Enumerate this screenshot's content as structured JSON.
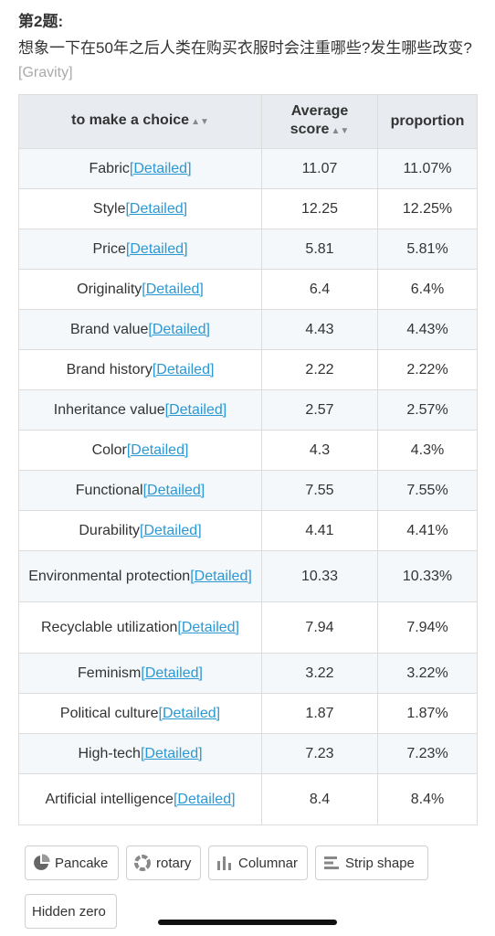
{
  "question": {
    "number": "第2题:",
    "text": "想象一下在50年之后人类在购买衣服时会注重哪些?发生哪些改变?",
    "tag": "[Gravity]"
  },
  "table": {
    "headers": {
      "choice": "to make a choice",
      "score": "Average score",
      "proportion": "proportion"
    },
    "detail_label": "[Detailed]",
    "rows": [
      {
        "choice": "Fabric",
        "score": "11.07",
        "proportion": "11.07%"
      },
      {
        "choice": "Style",
        "score": "12.25",
        "proportion": "12.25%"
      },
      {
        "choice": "Price",
        "score": "5.81",
        "proportion": "5.81%"
      },
      {
        "choice": "Originality",
        "score": "6.4",
        "proportion": "6.4%"
      },
      {
        "choice": "Brand value",
        "score": "4.43",
        "proportion": "4.43%"
      },
      {
        "choice": "Brand history",
        "score": "2.22",
        "proportion": "2.22%"
      },
      {
        "choice": "Inheritance value",
        "score": "2.57",
        "proportion": "2.57%"
      },
      {
        "choice": "Color",
        "score": "4.3",
        "proportion": "4.3%"
      },
      {
        "choice": "Functional",
        "score": "7.55",
        "proportion": "7.55%"
      },
      {
        "choice": "Durability",
        "score": "4.41",
        "proportion": "4.41%"
      },
      {
        "choice": "Environmental protection",
        "score": "10.33",
        "proportion": "10.33%"
      },
      {
        "choice": "Recyclable utilization",
        "score": "7.94",
        "proportion": "7.94%"
      },
      {
        "choice": "Feminism",
        "score": "3.22",
        "proportion": "3.22%"
      },
      {
        "choice": "Political culture",
        "score": "1.87",
        "proportion": "1.87%"
      },
      {
        "choice": "High-tech",
        "score": "7.23",
        "proportion": "7.23%"
      },
      {
        "choice": "Artificial intelligence",
        "score": "8.4",
        "proportion": "8.4%"
      }
    ]
  },
  "chart_buttons": {
    "pancake": {
      "label": "Pancake",
      "icon": "pie-chart-icon"
    },
    "rotary": {
      "label": "rotary",
      "icon": "ring-chart-icon"
    },
    "columnar": {
      "label": "Columnar",
      "icon": "column-chart-icon"
    },
    "strip": {
      "label": "Strip shape",
      "icon": "bar-chart-icon"
    },
    "hidden_zero": {
      "label": "Hidden zero"
    }
  },
  "colors": {
    "link": "#2b98d4",
    "header_bg": "#e8ecf1",
    "stripe_bg": "#f4f8fb",
    "border": "#dcdcdc"
  }
}
